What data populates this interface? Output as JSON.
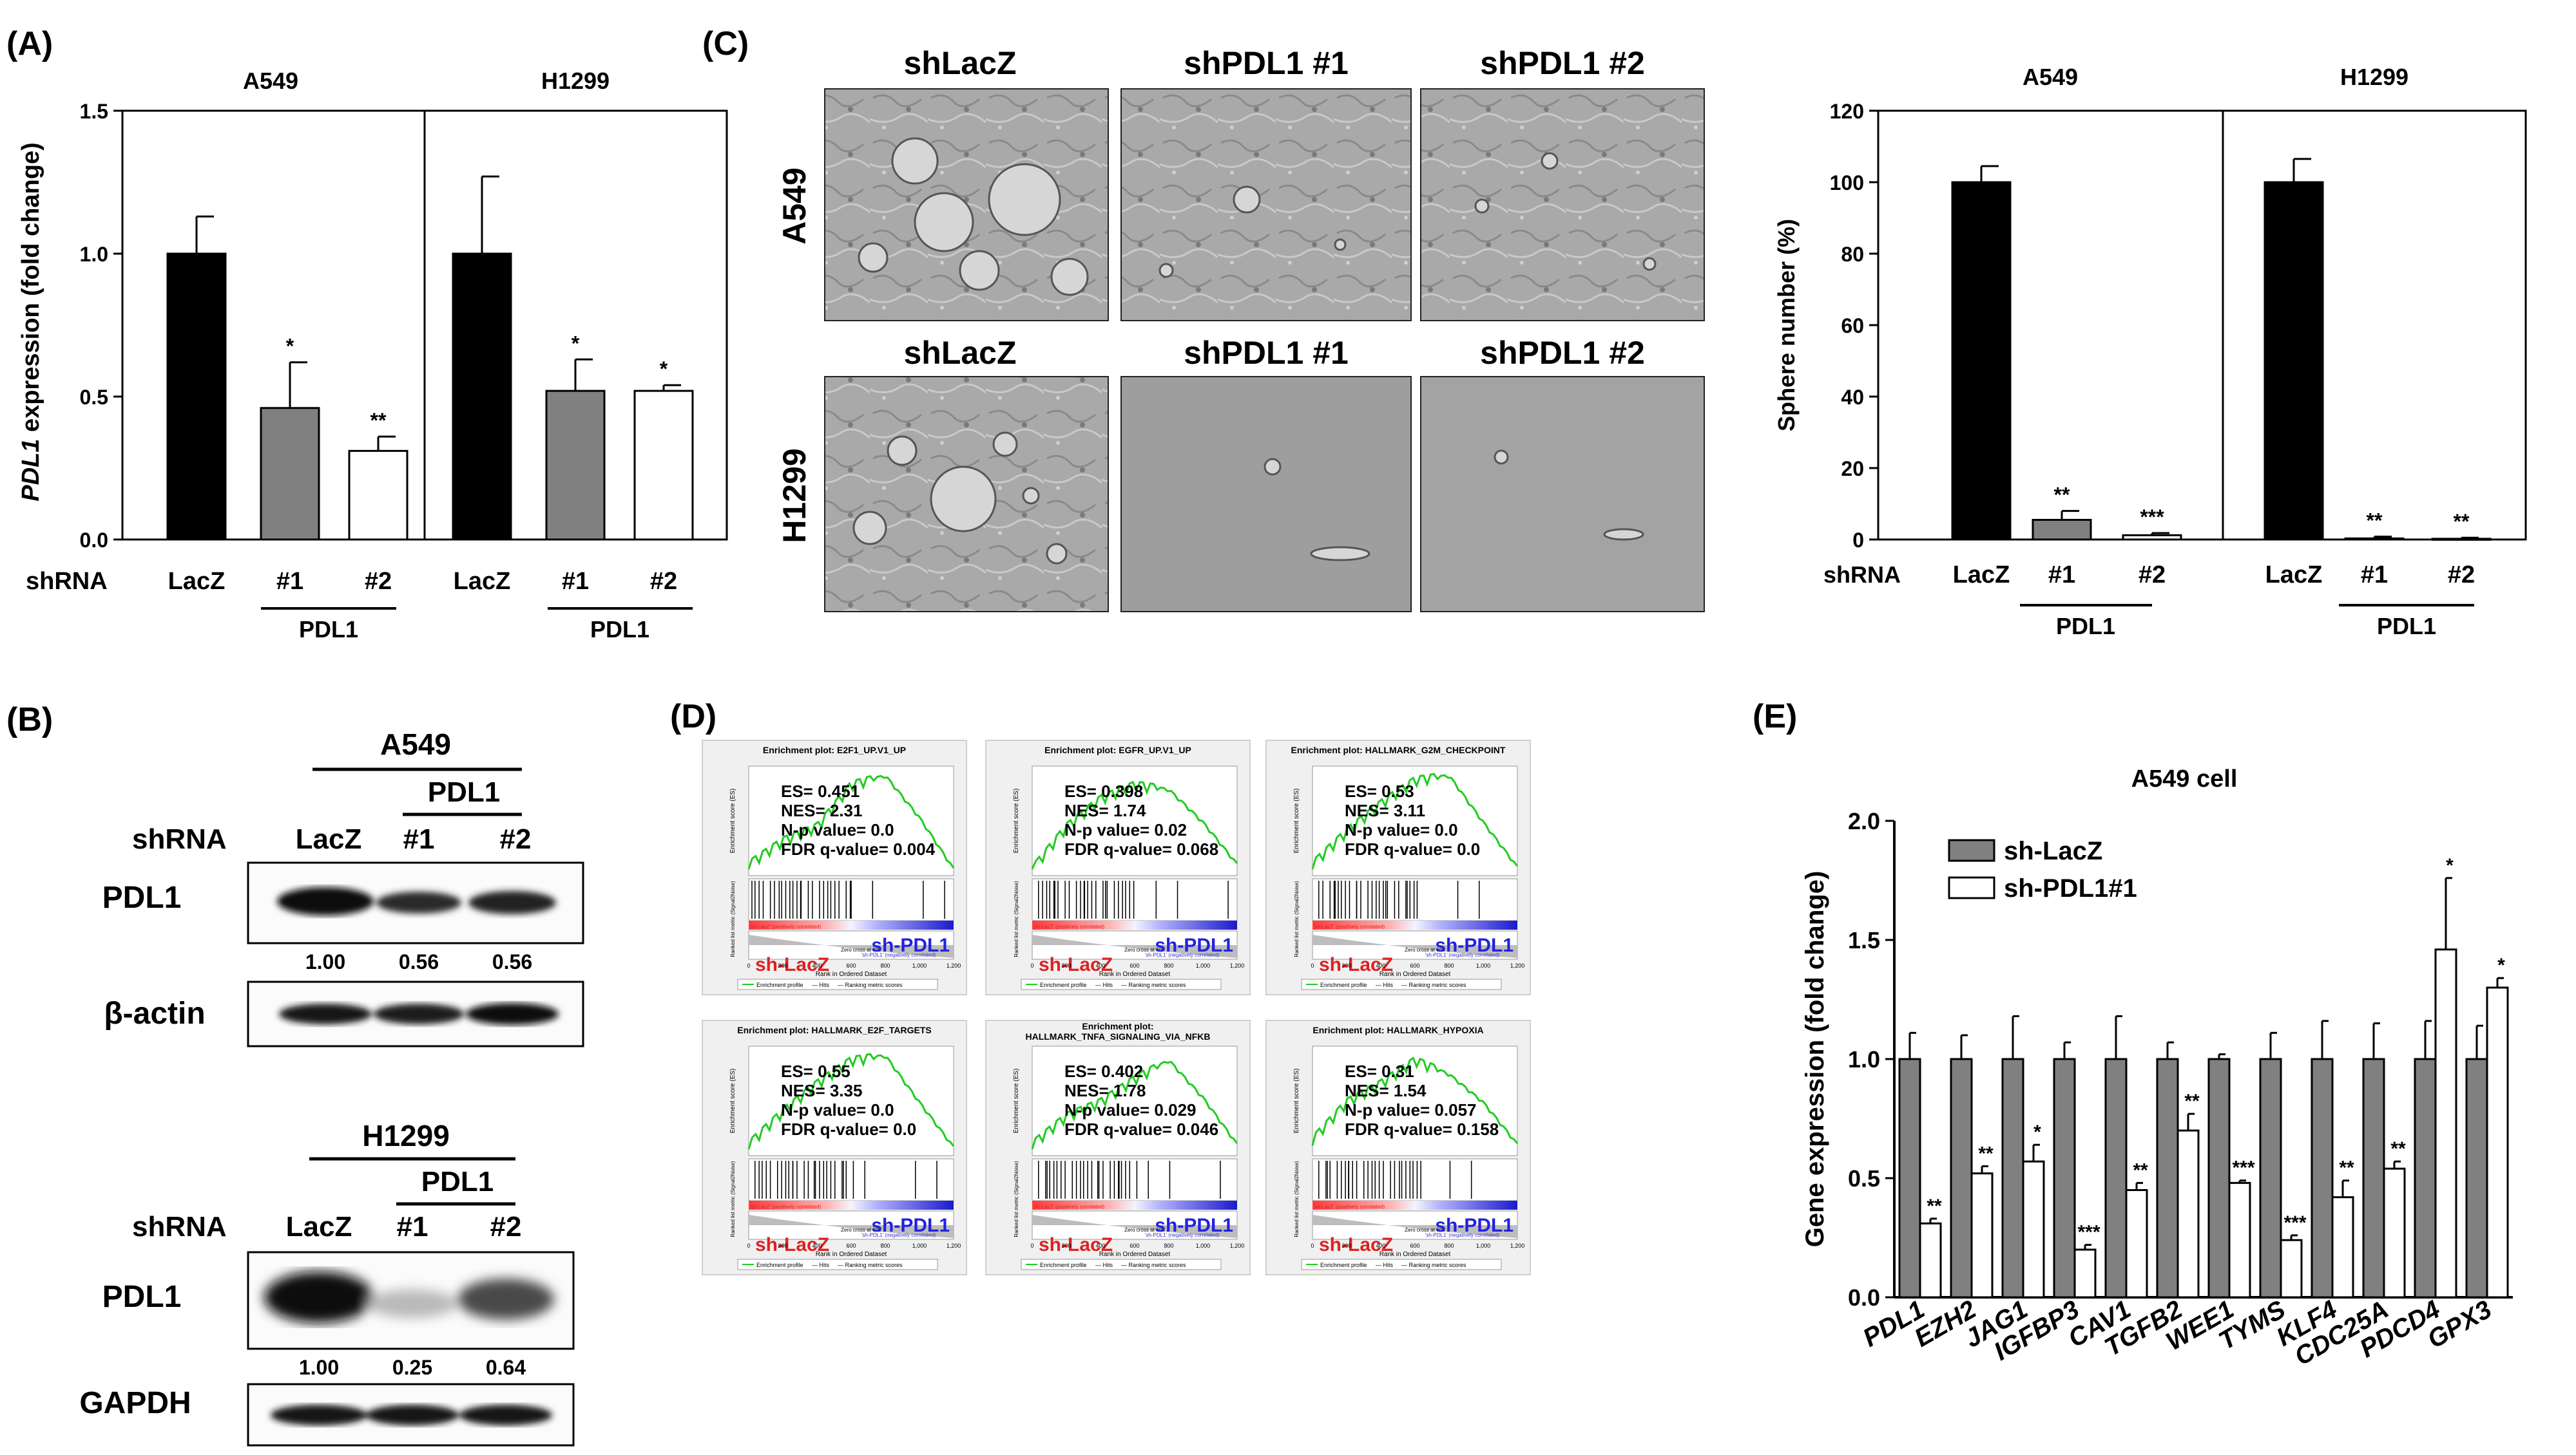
{
  "panels": {
    "A": {
      "letter": "(A)",
      "ylabel_italic": "PDL1",
      "ylabel_rest": " expression (fold change)",
      "shrna_label": "shRNA",
      "group_label": "PDL1",
      "yticks": [
        "0.0",
        "0.5",
        "1.0",
        "1.5"
      ]
    },
    "B": {
      "letter": "(B)",
      "shrna_label": "shRNA",
      "blots": [
        {
          "cell": "A549",
          "group_label": "PDL1",
          "lanes": [
            "LacZ",
            "#1",
            "#2"
          ],
          "protein": "PDL1",
          "quant": [
            "1.00",
            "0.56",
            "0.56"
          ],
          "loading": "β-actin"
        },
        {
          "cell": "H1299",
          "group_label": "PDL1",
          "lanes": [
            "LacZ",
            "#1",
            "#2"
          ],
          "protein": "PDL1",
          "quant": [
            "1.00",
            "0.25",
            "0.64"
          ],
          "loading": "GAPDH"
        }
      ]
    },
    "C": {
      "letter": "(C)",
      "columns": [
        "shLacZ",
        "shPDL1 #1",
        "shPDL1 #2"
      ],
      "rows": [
        "A549",
        "H1299"
      ],
      "chart_ylabel": "Sphere number (%)",
      "shrna_label": "shRNA",
      "group_label": "PDL1",
      "yticks": [
        "0",
        "20",
        "40",
        "60",
        "80",
        "100",
        "120"
      ]
    },
    "D": {
      "letter": "(D)",
      "plots": [
        {
          "title": "Enrichment plot: E2F1_UP.V1_UP",
          "es": "ES= 0.451",
          "nes": "NES= 2.31",
          "np": "N-p value= 0.0",
          "fdr": "FDR q-value= 0.004"
        },
        {
          "title": "Enrichment plot: EGFR_UP.V1_UP",
          "es": "ES= 0.398",
          "nes": "NES= 1.74",
          "np": "N-p value= 0.02",
          "fdr": "FDR q-value= 0.068"
        },
        {
          "title": "Enrichment plot: HALLMARK_G2M_CHECKPOINT",
          "es": "ES= 0.53",
          "nes": "NES= 3.11",
          "np": "N-p value= 0.0",
          "fdr": "FDR q-value= 0.0"
        },
        {
          "title": "Enrichment plot: HALLMARK_E2F_TARGETS",
          "es": "ES= 0.55",
          "nes": "NES= 3.35",
          "np": "N-p value= 0.0",
          "fdr": "FDR q-value= 0.0"
        },
        {
          "title": "HALLMARK_TNFA_SIGNALING_VIA_NFKB",
          "title_top": "Enrichment plot:",
          "es": "ES= 0.402",
          "nes": "NES= 1.78",
          "np": "N-p value= 0.029",
          "fdr": "FDR q-value= 0.046"
        },
        {
          "title": "Enrichment plot: HALLMARK_HYPOXIA",
          "es": "ES= 0.31",
          "nes": "NES= 1.54",
          "np": "N-p value= 0.057",
          "fdr": "FDR q-value= 0.158"
        }
      ],
      "pos_label": "sh-PDL1",
      "neg_label": "sh-LacZ",
      "es_axis": "Enrichment score (ES)",
      "rank_axis": "Ranked list metric (Signal2Noise)",
      "x_axis": "Rank in Ordered Dataset",
      "legend": [
        "Enrichment profile",
        "Hits",
        "Ranking metric scores"
      ],
      "pos_note": "'sh-LacZ' (positively correlated)",
      "neg_note": "'sh-PDL1' (negatively correlated)",
      "zero_note": "Zero cross at 608",
      "x_ticks": [
        "0",
        "200",
        "400",
        "600",
        "800",
        "1,000",
        "1,200"
      ]
    },
    "E": {
      "letter": "(E)"
    }
  },
  "chart_data": [
    {
      "id": "A",
      "type": "bar",
      "ylabel": "PDL1 expression (fold change)",
      "ylim": [
        0,
        1.5
      ],
      "subplots": [
        {
          "title": "A549",
          "categories": [
            "LacZ",
            "#1",
            "#2"
          ],
          "values": [
            1.0,
            0.46,
            0.31
          ],
          "errors": [
            0.13,
            0.16,
            0.05
          ],
          "significance": [
            "",
            "*",
            "**"
          ],
          "colors": [
            "#000000",
            "#808080",
            "#ffffff"
          ]
        },
        {
          "title": "H1299",
          "categories": [
            "LacZ",
            "#1",
            "#2"
          ],
          "values": [
            1.0,
            0.52,
            0.52
          ],
          "errors": [
            0.27,
            0.11,
            0.02
          ],
          "significance": [
            "",
            "*",
            "*"
          ],
          "colors": [
            "#000000",
            "#808080",
            "#ffffff"
          ]
        }
      ]
    },
    {
      "id": "C",
      "type": "bar",
      "ylabel": "Sphere number (%)",
      "ylim": [
        0,
        120
      ],
      "subplots": [
        {
          "title": "A549",
          "categories": [
            "LacZ",
            "#1",
            "#2"
          ],
          "values": [
            100,
            5.5,
            1.2
          ],
          "errors": [
            4.5,
            2.5,
            0.6
          ],
          "significance": [
            "",
            "**",
            "***"
          ],
          "colors": [
            "#000000",
            "#808080",
            "#ffffff"
          ]
        },
        {
          "title": "H1299",
          "categories": [
            "LacZ",
            "#1",
            "#2"
          ],
          "values": [
            100,
            0.3,
            0.2
          ],
          "errors": [
            6.5,
            0.5,
            0.3
          ],
          "significance": [
            "",
            "**",
            "**"
          ],
          "colors": [
            "#000000",
            "#808080",
            "#ffffff"
          ]
        }
      ]
    },
    {
      "id": "E",
      "type": "bar",
      "title": "A549 cell",
      "ylabel": "Gene expression (fold change)",
      "ylim": [
        0,
        2.0
      ],
      "yticks": [
        "0.0",
        "0.5",
        "1.0",
        "1.5",
        "2.0"
      ],
      "categories": [
        "PDL1",
        "EZH2",
        "JAG1",
        "IGFBP3",
        "CAV1",
        "TGFB2",
        "WEE1",
        "TYMS",
        "KLF4",
        "CDC25A",
        "PDCD4",
        "GPX3"
      ],
      "series": [
        {
          "name": "sh-LacZ",
          "color": "#808080",
          "values": [
            1,
            1,
            1,
            1,
            1,
            1,
            1,
            1,
            1,
            1,
            1,
            1
          ],
          "errors": [
            0.11,
            0.1,
            0.18,
            0.07,
            0.18,
            0.07,
            0.02,
            0.11,
            0.16,
            0.15,
            0.16,
            0.14
          ]
        },
        {
          "name": "sh-PDL1#1",
          "color": "#ffffff",
          "values": [
            0.31,
            0.52,
            0.57,
            0.2,
            0.45,
            0.7,
            0.48,
            0.24,
            0.42,
            0.54,
            1.46,
            1.3
          ],
          "errors": [
            0.02,
            0.03,
            0.07,
            0.02,
            0.03,
            0.07,
            0.01,
            0.02,
            0.07,
            0.03,
            0.3,
            0.04
          ],
          "significance": [
            "**",
            "**",
            "*",
            "***",
            "**",
            "**",
            "***",
            "***",
            "**",
            "**",
            "*",
            "*"
          ]
        }
      ]
    }
  ]
}
